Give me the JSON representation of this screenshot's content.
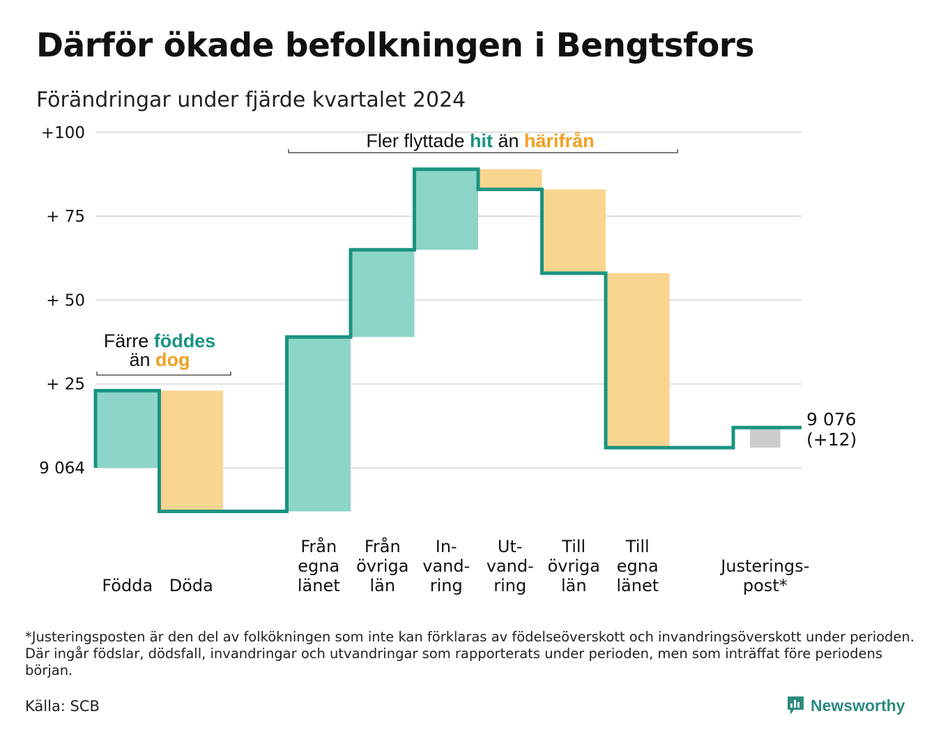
{
  "title": "Därför ökade befolkningen i Bengtsfors",
  "subtitle": "Förändringar under fjärde kvartalet 2024",
  "colors": {
    "in": "#8dd4c9",
    "out": "#fad58f",
    "adjust": "#cccccc",
    "line": "#1a9381",
    "grid": "#dddddd",
    "teal_text": "#1a9381",
    "orange_text": "#f0a020"
  },
  "chart_data": {
    "type": "waterfall",
    "start_label": "9 064",
    "start_value": 0,
    "ylim": [
      -13,
      100
    ],
    "y_ticks": [
      {
        "value": 0,
        "label": "9 064"
      },
      {
        "value": 25,
        "label": "+ 25"
      },
      {
        "value": 50,
        "label": "+ 50"
      },
      {
        "value": 75,
        "label": "+ 75"
      },
      {
        "value": 100,
        "label": "+100"
      }
    ],
    "steps": [
      {
        "label": [
          "Födda"
        ],
        "change": 23,
        "kind": "in"
      },
      {
        "label": [
          "Döda"
        ],
        "change": -36,
        "kind": "out"
      },
      {
        "label": [],
        "change": 0,
        "kind": "none"
      },
      {
        "label": [
          "Från",
          "egna",
          "länet"
        ],
        "change": 52,
        "kind": "in"
      },
      {
        "label": [
          "Från",
          "övriga",
          "län"
        ],
        "change": 26,
        "kind": "in"
      },
      {
        "label": [
          "In-",
          "vand-",
          "ring"
        ],
        "change": 24,
        "kind": "in"
      },
      {
        "label": [
          "Ut-",
          "vand-",
          "ring"
        ],
        "change": -6,
        "kind": "out"
      },
      {
        "label": [
          "Till",
          "övriga",
          "län"
        ],
        "change": -25,
        "kind": "out"
      },
      {
        "label": [
          "Till",
          "egna",
          "länet"
        ],
        "change": -52,
        "kind": "out"
      },
      {
        "label": [],
        "change": 0,
        "kind": "none"
      },
      {
        "label": [
          "Justerings-",
          "post*"
        ],
        "change": 6,
        "kind": "adjust"
      }
    ],
    "end_label": [
      "9 076",
      "(+12)"
    ],
    "annotations": [
      {
        "parts": [
          {
            "text": "Färre ",
            "style": "plain"
          },
          {
            "text": "föddes",
            "style": "teal"
          }
        ],
        "line2": [
          {
            "text": "än ",
            "style": "plain"
          },
          {
            "text": "dog",
            "style": "orange"
          }
        ]
      },
      {
        "parts": [
          {
            "text": "Fler flyttade ",
            "style": "plain"
          },
          {
            "text": "hit",
            "style": "teal"
          },
          {
            "text": " än ",
            "style": "plain"
          },
          {
            "text": "härifrån",
            "style": "orange"
          }
        ]
      }
    ]
  },
  "footnote": "*Justeringsposten är den del av folkökningen som inte kan förklaras av födelseöverskott och invandringsöverskott under perioden. Där ingår födslar, dödsfall, invandringar och utvandringar som rapporterats under perioden, men som inträffat före periodens början.",
  "source": "Källa: SCB",
  "brand": {
    "name": "Newsworthy",
    "icon": "bar-chart-logo-icon"
  }
}
